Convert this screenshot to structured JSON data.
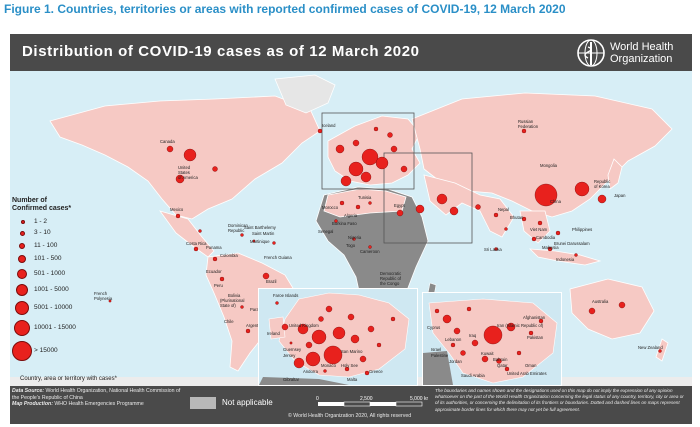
{
  "figure_title": "Figure 1. Countries, territories or areas with reported confirmed cases of COVID-19, 12 March 2020",
  "map_title": "Distribution of COVID-19  cases as of 12 March 2020",
  "org_name_line1": "World Health",
  "org_name_line2": "Organization",
  "legend": {
    "title_line1": "Number of",
    "title_line2": "Confirmed cases*",
    "classes": [
      "1 - 2",
      "3 - 10",
      "11 - 100",
      "101 - 500",
      "501 - 1000",
      "1001 - 5000",
      "5001 - 10000",
      "10001 - 15000",
      "> 15000"
    ],
    "footnote": "Country, area or territory with cases*"
  },
  "not_applicable_label": "Not applicable",
  "scale": {
    "ticks": [
      "0",
      "2,500",
      "5,000"
    ],
    "unit": "km"
  },
  "copyright": "© World Health Organization  2020, All rights reserved",
  "data_source_label": "Data Source:",
  "data_source_text": "World Health Organization, National Health Commission of the People's Republic of China",
  "map_production_label": "Map Production:",
  "map_production_text": "WHO Health Emergencies Programme",
  "disclaimer": "The boundaries and names shown and the designations used on this map do not imply the expression of any opinion whatsoever on the part of the World Health Organization concerning the legal status of any country, territory, city or area or of its authorities, or concerning the delimitation of its frontiers or boundaries. Dotted and dashed lines on maps represent approximate border lines for which there may not yet be full agreement.",
  "place_labels": [
    "Canada",
    "United States of America",
    "Mexico",
    "Iceland",
    "Russian Federation",
    "Mongolia",
    "Republic of Korea",
    "Japan",
    "China",
    "Nepal",
    "Bhutan",
    "Viet Nam",
    "Cambodia",
    "Philippines",
    "Malaysia",
    "Brunei Darussalam",
    "Indonesia",
    "Sri Lanka",
    "Australia",
    "New Zealand",
    "Brazil",
    "Colombia",
    "Ecuador",
    "Peru",
    "Chile",
    "Argentina",
    "Paraguay",
    "Bolivia (Plurinational State of)",
    "Costa Rica",
    "Panama",
    "Dominican Republic",
    "Martinique",
    "French Guiana",
    "Saint Martin",
    "Saint Barthelemy",
    "French Polynesia",
    "Morocco",
    "Algeria",
    "Tunisia",
    "Senegal",
    "Togo",
    "Cameroon",
    "Nigeria",
    "Egypt",
    "Burkina Faso",
    "Democratic Republic of the Congo",
    "South Africa",
    "Faroe Islands",
    "Ireland",
    "United Kingdom",
    "Guernsey",
    "Jersey",
    "Gibraltar",
    "Andorra",
    "Monaco",
    "San Marino",
    "Holy See",
    "Malta",
    "Greece",
    "Cyprus",
    "Lebanon",
    "Israel",
    "Palestine",
    "Jordan",
    "Iraq",
    "Iran (Islamic Republic of)",
    "Kuwait",
    "Bahrain",
    "Qatar",
    "United Arab Emirates",
    "Oman",
    "Saudi Arabia",
    "Afghanistan",
    "Pakistan"
  ]
}
